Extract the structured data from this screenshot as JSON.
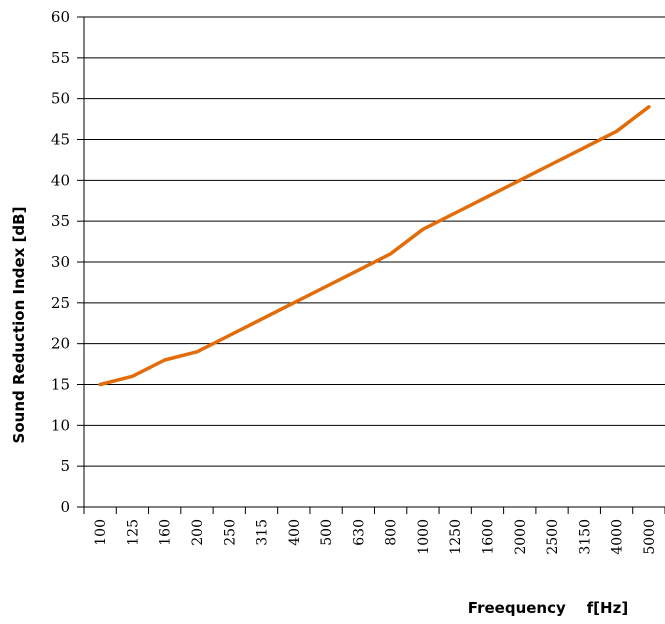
{
  "chart_data": {
    "type": "line",
    "title": "",
    "xlabel": "Freequency    f[Hz]",
    "ylabel": "Sound Reduction Index [dB]",
    "ylim": [
      0,
      60
    ],
    "yticks": [
      "0",
      "5",
      "10",
      "15",
      "20",
      "25",
      "30",
      "35",
      "40",
      "45",
      "50",
      "55",
      "60"
    ],
    "grid": "horizontal",
    "legend": "none",
    "categories": [
      "100",
      "125",
      "160",
      "200",
      "250",
      "315",
      "400",
      "500",
      "630",
      "800",
      "1000",
      "1250",
      "1600",
      "2000",
      "2500",
      "3150",
      "4000",
      "5000"
    ],
    "series": [
      {
        "color": "#E36C0A",
        "values": [
          15,
          16,
          18,
          19,
          21,
          23,
          25,
          27,
          29,
          31,
          34,
          36,
          38,
          40,
          42,
          44,
          46,
          49
        ]
      }
    ]
  }
}
